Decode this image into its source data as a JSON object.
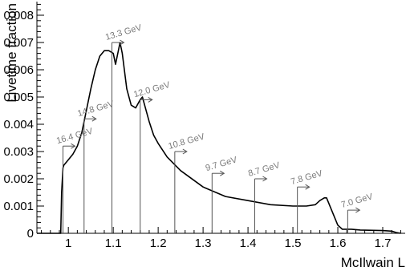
{
  "chart_data": {
    "type": "line",
    "xlabel": "McIlwain L",
    "ylabel": "Livetime fraction",
    "xlim": [
      0.93,
      1.75
    ],
    "ylim": [
      0,
      0.0085
    ],
    "x_ticks": [
      {
        "value": 1.0,
        "label": "1"
      },
      {
        "value": 1.1,
        "label": "1.1"
      },
      {
        "value": 1.2,
        "label": "1.2"
      },
      {
        "value": 1.3,
        "label": "1.3"
      },
      {
        "value": 1.4,
        "label": "1.4"
      },
      {
        "value": 1.5,
        "label": "1.5"
      },
      {
        "value": 1.6,
        "label": "1.6"
      },
      {
        "value": 1.7,
        "label": "1.7"
      }
    ],
    "y_ticks": [
      {
        "value": 0,
        "label": "0"
      },
      {
        "value": 0.001,
        "label": "0.001"
      },
      {
        "value": 0.002,
        "label": "0.002"
      },
      {
        "value": 0.003,
        "label": "0.003"
      },
      {
        "value": 0.004,
        "label": "0.004"
      },
      {
        "value": 0.005,
        "label": "0.005"
      },
      {
        "value": 0.006,
        "label": "0.006"
      },
      {
        "value": 0.007,
        "label": "0.007"
      },
      {
        "value": 0.008,
        "label": "0.008"
      }
    ],
    "series": [
      {
        "x": [
          0.93,
          0.983,
          0.985,
          0.988,
          0.99,
          1.0,
          1.01,
          1.02,
          1.03,
          1.04,
          1.05,
          1.06,
          1.07,
          1.08,
          1.09,
          1.1,
          1.105,
          1.11,
          1.115,
          1.12,
          1.13,
          1.14,
          1.15,
          1.16,
          1.165,
          1.17,
          1.18,
          1.19,
          1.2,
          1.22,
          1.25,
          1.3,
          1.35,
          1.4,
          1.45,
          1.5,
          1.53,
          1.55,
          1.56,
          1.57,
          1.575,
          1.58,
          1.6,
          1.61,
          1.63,
          1.65,
          1.7,
          1.72,
          1.73,
          1.74
        ],
        "y": [
          0,
          0,
          0.0015,
          0.0024,
          0.0025,
          0.0027,
          0.0029,
          0.0032,
          0.0037,
          0.0045,
          0.0053,
          0.006,
          0.0065,
          0.0067,
          0.0067,
          0.0066,
          0.0062,
          0.0066,
          0.007,
          0.0066,
          0.0053,
          0.0047,
          0.0046,
          0.0049,
          0.005,
          0.0047,
          0.0041,
          0.0036,
          0.0033,
          0.0028,
          0.0023,
          0.0017,
          0.00135,
          0.0012,
          0.00105,
          0.001,
          0.001,
          0.00105,
          0.0012,
          0.0013,
          0.0013,
          0.0011,
          0.0003,
          0.00015,
          0.00015,
          0.00012,
          0.0001,
          8e-05,
          3e-05,
          0
        ]
      }
    ],
    "energy_markers": [
      {
        "x": 0.988,
        "y": 0.0032,
        "label": "16.4 GeV"
      },
      {
        "x": 1.035,
        "y": 0.0042,
        "label": "14.8 GeV"
      },
      {
        "x": 1.097,
        "y": 0.007,
        "label": "13.3 GeV"
      },
      {
        "x": 1.16,
        "y": 0.0049,
        "label": "12.0 GeV"
      },
      {
        "x": 1.237,
        "y": 0.003,
        "label": "10.8 GeV"
      },
      {
        "x": 1.32,
        "y": 0.0022,
        "label": "9.7 GeV"
      },
      {
        "x": 1.415,
        "y": 0.002,
        "label": "8.7 GeV"
      },
      {
        "x": 1.51,
        "y": 0.0017,
        "label": "7.8 GeV"
      },
      {
        "x": 1.622,
        "y": 0.00085,
        "label": "7.0 GeV"
      }
    ],
    "grid": false,
    "legend": "none"
  }
}
